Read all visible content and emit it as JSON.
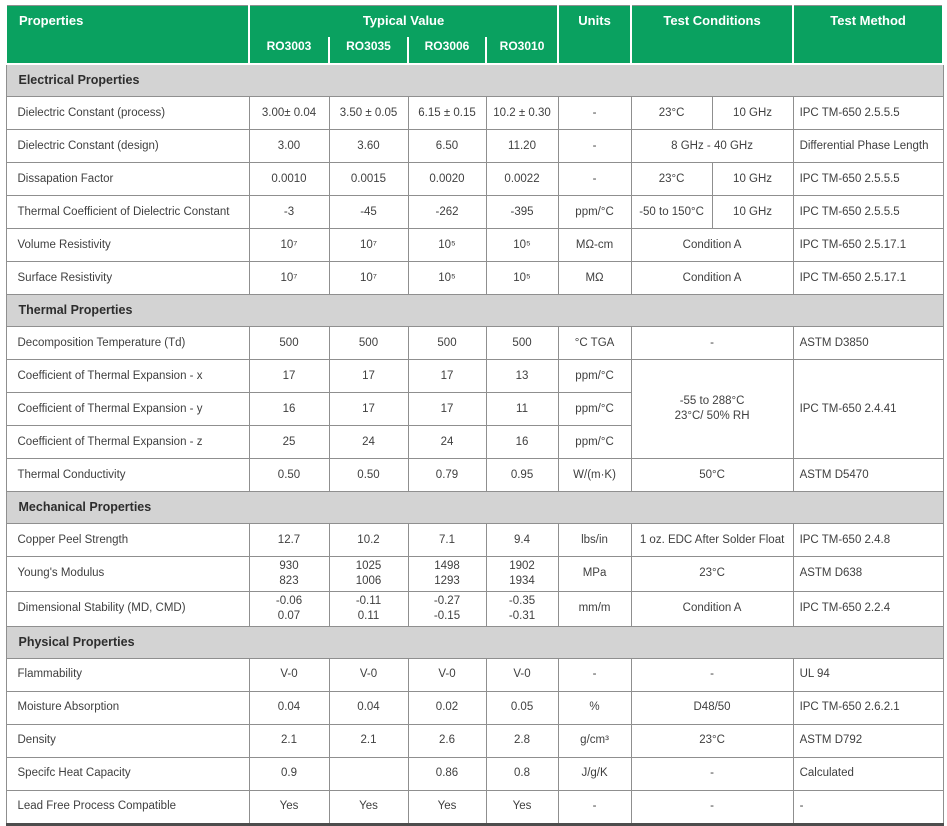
{
  "accent_color": "#0aa160",
  "section_band_color": "#d3d3d3",
  "border_color": "#8f8f8f",
  "header": {
    "properties": "Properties",
    "typical_value": "Typical Value",
    "models": [
      "RO3003",
      "RO3035",
      "RO3006",
      "RO3010"
    ],
    "units": "Units",
    "test_conditions": "Test Conditions",
    "test_method": "Test Method"
  },
  "sections": [
    {
      "title": "Electrical Properties",
      "rows": [
        {
          "property": "Dielectric Constant (process)",
          "values": [
            "3.00± 0.04",
            "3.50 ± 0.05",
            "6.15 ± 0.15",
            "10.2 ± 0.30"
          ],
          "units": "-",
          "conditions": [
            "23°C",
            "10 GHz"
          ],
          "method": "IPC TM-650 2.5.5.5"
        },
        {
          "property": "Dielectric Constant (design)",
          "values": [
            "3.00",
            "3.60",
            "6.50",
            "11.20"
          ],
          "units": "-",
          "conditions": [
            "8 GHz - 40 GHz"
          ],
          "method": "Differential Phase Length"
        },
        {
          "property": "Dissapation Factor",
          "values": [
            "0.0010",
            "0.0015",
            "0.0020",
            "0.0022"
          ],
          "units": "-",
          "conditions": [
            "23°C",
            "10 GHz"
          ],
          "method": "IPC TM-650 2.5.5.5"
        },
        {
          "property": "Thermal Coefficient of Dielectric Constant",
          "values": [
            "-3",
            "-45",
            "-262",
            "-395"
          ],
          "units": "ppm/°C",
          "conditions": [
            "-50 to 150°C",
            "10 GHz"
          ],
          "method": "IPC TM-650 2.5.5.5"
        },
        {
          "property": "Volume Resistivity",
          "values": [
            "10⁷",
            "10⁷",
            "10⁵",
            "10⁵"
          ],
          "units": "MΩ-cm",
          "conditions": [
            "Condition A"
          ],
          "method": "IPC TM-650 2.5.17.1"
        },
        {
          "property": "Surface Resistivity",
          "values": [
            "10⁷",
            "10⁷",
            "10⁵",
            "10⁵"
          ],
          "units": "MΩ",
          "conditions": [
            "Condition A"
          ],
          "method": "IPC TM-650 2.5.17.1"
        }
      ]
    },
    {
      "title": "Thermal Properties",
      "rows": [
        {
          "property": "Decomposition Temperature (Td)",
          "values": [
            "500",
            "500",
            "500",
            "500"
          ],
          "units": "°C TGA",
          "conditions": [
            "-"
          ],
          "method": "ASTM D3850"
        },
        {
          "property": "Coefficient of Thermal Expansion - x",
          "values": [
            "17",
            "17",
            "17",
            "13"
          ],
          "units": "ppm/°C",
          "conditions": [
            {
              "text": "-55 to 288°C\n23°C/ 50% RH",
              "rowspan": 3
            }
          ],
          "method": {
            "text": "IPC TM-650 2.4.41",
            "rowspan": 3
          }
        },
        {
          "property": "Coefficient of Thermal Expansion - y",
          "values": [
            "16",
            "17",
            "17",
            "11"
          ],
          "units": "ppm/°C"
        },
        {
          "property": "Coefficient of Thermal Expansion - z",
          "values": [
            "25",
            "24",
            "24",
            "16"
          ],
          "units": "ppm/°C"
        },
        {
          "property": "Thermal Conductivity",
          "values": [
            "0.50",
            "0.50",
            "0.79",
            "0.95"
          ],
          "units": "W/(m·K)",
          "conditions": [
            "50°C"
          ],
          "method": "ASTM D5470"
        }
      ]
    },
    {
      "title": "Mechanical Properties",
      "rows": [
        {
          "property": "Copper Peel Strength",
          "values": [
            "12.7",
            "10.2",
            "7.1",
            "9.4"
          ],
          "units": "lbs/in",
          "conditions": [
            "1 oz. EDC After Solder  Float"
          ],
          "method": "IPC TM-650 2.4.8"
        },
        {
          "property": "Young's Modulus",
          "values": [
            "930\n823",
            "1025\n1006",
            "1498\n1293",
            "1902\n1934"
          ],
          "units": "MPa",
          "conditions": [
            "23°C"
          ],
          "method": "ASTM D638"
        },
        {
          "property": "Dimensional Stability (MD, CMD)",
          "values": [
            "-0.06\n0.07",
            "-0.11\n0.11",
            "-0.27\n-0.15",
            "-0.35\n-0.31"
          ],
          "units": "mm/m",
          "conditions": [
            "Condition A"
          ],
          "method": "IPC TM-650 2.2.4"
        }
      ]
    },
    {
      "title": "Physical Properties",
      "rows": [
        {
          "property": "Flammability",
          "values": [
            "V-0",
            "V-0",
            "V-0",
            "V-0"
          ],
          "units": "-",
          "conditions": [
            "-"
          ],
          "method": "UL 94"
        },
        {
          "property": "Moisture Absorption",
          "values": [
            "0.04",
            "0.04",
            "0.02",
            "0.05"
          ],
          "units": "%",
          "conditions": [
            "D48/50"
          ],
          "method": "IPC TM-650 2.6.2.1"
        },
        {
          "property": "Density",
          "values": [
            "2.1",
            "2.1",
            "2.6",
            "2.8"
          ],
          "units": "g/cm³",
          "conditions": [
            "23°C"
          ],
          "method": "ASTM D792"
        },
        {
          "property": "Specifc Heat Capacity",
          "values": [
            "0.9",
            "",
            "0.86",
            "0.8"
          ],
          "units": "J/g/K",
          "conditions": [
            "-"
          ],
          "method": "Calculated"
        },
        {
          "property": "Lead Free Process Compatible",
          "values": [
            "Yes",
            "Yes",
            "Yes",
            "Yes"
          ],
          "units": "-",
          "conditions": [
            "-"
          ],
          "method": "-"
        }
      ]
    }
  ]
}
